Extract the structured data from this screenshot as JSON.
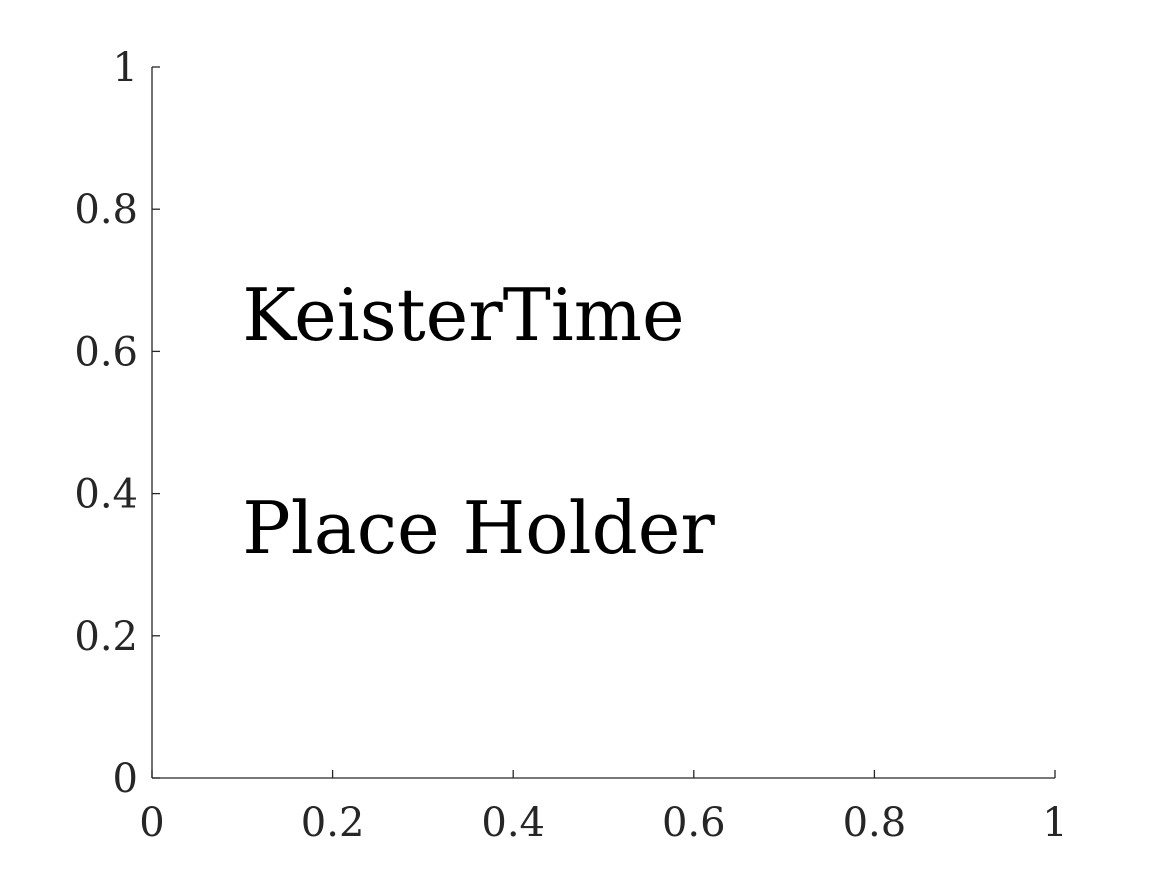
{
  "chart_data": {
    "type": "scatter",
    "title": "",
    "xlabel": "",
    "ylabel": "",
    "xlim": [
      0,
      1
    ],
    "ylim": [
      0,
      1
    ],
    "xticks": [
      0,
      0.2,
      0.4,
      0.6,
      0.8,
      1
    ],
    "xtick_labels": [
      "0",
      "0.2",
      "0.4",
      "0.6",
      "0.8",
      "1"
    ],
    "yticks": [
      0,
      0.2,
      0.4,
      0.6,
      0.8,
      1
    ],
    "ytick_labels": [
      "0",
      "0.2",
      "0.4",
      "0.6",
      "0.8",
      "1"
    ],
    "grid": false,
    "series": [],
    "annotations": [
      {
        "text": "KeisterTime",
        "x": 0.1,
        "y": 0.65
      },
      {
        "text": "Place Holder",
        "x": 0.1,
        "y": 0.35
      }
    ],
    "colors": {
      "axis": "#262626",
      "annotation": "#000000",
      "background": "#ffffff"
    }
  }
}
